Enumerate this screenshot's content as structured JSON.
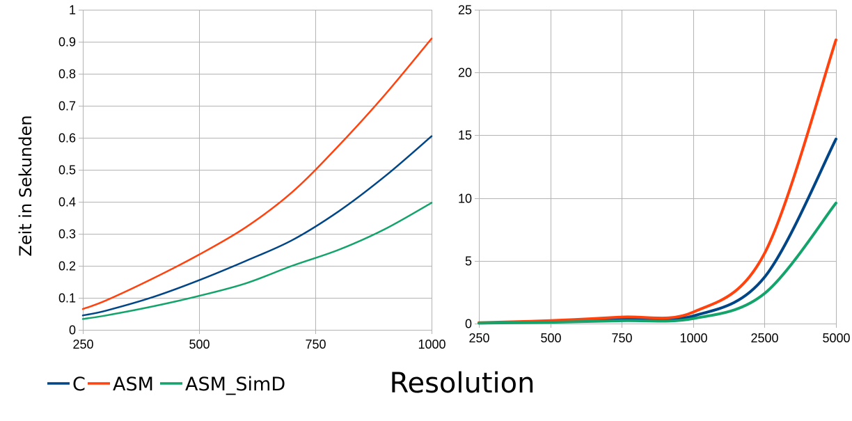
{
  "colors": {
    "C": "#004586",
    "ASM": "#ff420e",
    "ASM_SimD": "#13a36b"
  },
  "shared": {
    "ylabel": "Zeit in Sekunden",
    "xlabel": "Resolution",
    "legend": [
      "C",
      "ASM",
      "ASM_SimD"
    ],
    "legend_position": "bottom-left"
  },
  "chart_data": [
    {
      "type": "line",
      "x_axis": "linear",
      "x_ticks": [
        "250",
        "500",
        "750",
        "1000"
      ],
      "xlim": [
        250,
        1000
      ],
      "ylim": [
        0,
        1
      ],
      "y_ticks": [
        "0",
        "0.1",
        "0.2",
        "0.3",
        "0.4",
        "0.5",
        "0.6",
        "0.7",
        "0.8",
        "0.9",
        "1"
      ],
      "grid": true,
      "series": [
        {
          "name": "C",
          "x": [
            250,
            300,
            400,
            500,
            600,
            700,
            800,
            900,
            1000
          ],
          "y": [
            0.045,
            0.06,
            0.102,
            0.155,
            0.215,
            0.28,
            0.37,
            0.48,
            0.605
          ]
        },
        {
          "name": "ASM",
          "x": [
            250,
            300,
            400,
            500,
            600,
            700,
            800,
            900,
            1000
          ],
          "y": [
            0.065,
            0.092,
            0.16,
            0.235,
            0.32,
            0.43,
            0.575,
            0.735,
            0.91
          ]
        },
        {
          "name": "ASM_SimD",
          "x": [
            250,
            300,
            400,
            500,
            600,
            700,
            800,
            900,
            1000
          ],
          "y": [
            0.034,
            0.045,
            0.073,
            0.106,
            0.145,
            0.2,
            0.25,
            0.315,
            0.397
          ]
        }
      ]
    },
    {
      "type": "line",
      "x_axis": "categorical",
      "categories": [
        "250",
        "500",
        "750",
        "1000",
        "2500",
        "5000"
      ],
      "ylim": [
        0,
        25
      ],
      "y_ticks": [
        "0",
        "5",
        "10",
        "15",
        "20",
        "25"
      ],
      "grid": true,
      "series": [
        {
          "name": "C",
          "values": [
            0.045,
            0.155,
            0.35,
            0.605,
            3.7,
            14.7
          ]
        },
        {
          "name": "ASM",
          "values": [
            0.065,
            0.235,
            0.52,
            0.91,
            5.6,
            22.6
          ]
        },
        {
          "name": "ASM_SimD",
          "values": [
            0.034,
            0.106,
            0.23,
            0.397,
            2.4,
            9.6
          ]
        }
      ]
    }
  ]
}
